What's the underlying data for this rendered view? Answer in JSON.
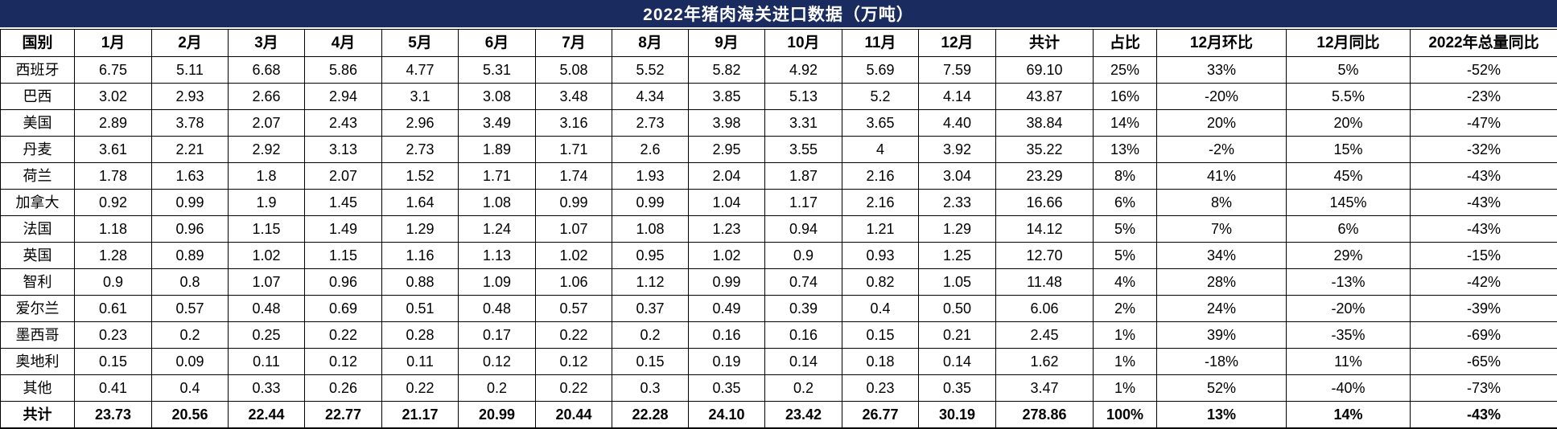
{
  "title": "2022年猪肉海关进口数据（万吨）",
  "styles": {
    "title_bg": "#1a2b5f",
    "title_color": "#ffffff",
    "border_color": "#000000",
    "text_color": "#000000"
  },
  "chart_data": {
    "type": "table",
    "title": "2022年猪肉海关进口数据（万吨）",
    "columns": [
      "国别",
      "1月",
      "2月",
      "3月",
      "4月",
      "5月",
      "6月",
      "7月",
      "8月",
      "9月",
      "10月",
      "11月",
      "12月",
      "共计",
      "占比",
      "12月环比",
      "12月同比",
      "2022年总量同比"
    ],
    "rows": [
      {
        "label": "西班牙",
        "cells": [
          "6.75",
          "5.11",
          "6.68",
          "5.86",
          "4.77",
          "5.31",
          "5.08",
          "5.52",
          "5.82",
          "4.92",
          "5.69",
          "7.59",
          "69.10",
          "25%",
          "33%",
          "5%",
          "-52%"
        ]
      },
      {
        "label": "巴西",
        "cells": [
          "3.02",
          "2.93",
          "2.66",
          "2.94",
          "3.1",
          "3.08",
          "3.48",
          "4.34",
          "3.85",
          "5.13",
          "5.2",
          "4.14",
          "43.87",
          "16%",
          "-20%",
          "5.5%",
          "-23%"
        ]
      },
      {
        "label": "美国",
        "cells": [
          "2.89",
          "3.78",
          "2.07",
          "2.43",
          "2.96",
          "3.49",
          "3.16",
          "2.73",
          "3.98",
          "3.31",
          "3.65",
          "4.40",
          "38.84",
          "14%",
          "20%",
          "20%",
          "-47%"
        ]
      },
      {
        "label": "丹麦",
        "cells": [
          "3.61",
          "2.21",
          "2.92",
          "3.13",
          "2.73",
          "1.89",
          "1.71",
          "2.6",
          "2.95",
          "3.55",
          "4",
          "3.92",
          "35.22",
          "13%",
          "-2%",
          "15%",
          "-32%"
        ]
      },
      {
        "label": "荷兰",
        "cells": [
          "1.78",
          "1.63",
          "1.8",
          "2.07",
          "1.52",
          "1.71",
          "1.74",
          "1.93",
          "2.04",
          "1.87",
          "2.16",
          "3.04",
          "23.29",
          "8%",
          "41%",
          "45%",
          "-43%"
        ]
      },
      {
        "label": "加拿大",
        "cells": [
          "0.92",
          "0.99",
          "1.9",
          "1.45",
          "1.64",
          "1.08",
          "0.99",
          "0.99",
          "1.04",
          "1.17",
          "2.16",
          "2.33",
          "16.66",
          "6%",
          "8%",
          "145%",
          "-43%"
        ]
      },
      {
        "label": "法国",
        "cells": [
          "1.18",
          "0.96",
          "1.15",
          "1.49",
          "1.29",
          "1.24",
          "1.07",
          "1.08",
          "1.23",
          "0.94",
          "1.21",
          "1.29",
          "14.12",
          "5%",
          "7%",
          "6%",
          "-43%"
        ]
      },
      {
        "label": "英国",
        "cells": [
          "1.28",
          "0.89",
          "1.02",
          "1.15",
          "1.16",
          "1.13",
          "1.02",
          "0.95",
          "1.02",
          "0.9",
          "0.93",
          "1.25",
          "12.70",
          "5%",
          "34%",
          "29%",
          "-15%"
        ]
      },
      {
        "label": "智利",
        "cells": [
          "0.9",
          "0.8",
          "1.07",
          "0.96",
          "0.88",
          "1.09",
          "1.06",
          "1.12",
          "0.99",
          "0.74",
          "0.82",
          "1.05",
          "11.48",
          "4%",
          "28%",
          "-13%",
          "-42%"
        ]
      },
      {
        "label": "爱尔兰",
        "cells": [
          "0.61",
          "0.57",
          "0.48",
          "0.69",
          "0.51",
          "0.48",
          "0.57",
          "0.37",
          "0.49",
          "0.39",
          "0.4",
          "0.50",
          "6.06",
          "2%",
          "24%",
          "-20%",
          "-39%"
        ]
      },
      {
        "label": "墨西哥",
        "cells": [
          "0.23",
          "0.2",
          "0.25",
          "0.22",
          "0.28",
          "0.17",
          "0.22",
          "0.2",
          "0.16",
          "0.16",
          "0.15",
          "0.21",
          "2.45",
          "1%",
          "39%",
          "-35%",
          "-69%"
        ]
      },
      {
        "label": "奥地利",
        "cells": [
          "0.15",
          "0.09",
          "0.11",
          "0.12",
          "0.11",
          "0.12",
          "0.12",
          "0.15",
          "0.19",
          "0.14",
          "0.18",
          "0.14",
          "1.62",
          "1%",
          "-18%",
          "11%",
          "-65%"
        ]
      },
      {
        "label": "其他",
        "cells": [
          "0.41",
          "0.4",
          "0.33",
          "0.26",
          "0.22",
          "0.2",
          "0.22",
          "0.3",
          "0.35",
          "0.2",
          "0.23",
          "0.35",
          "3.47",
          "1%",
          "52%",
          "-40%",
          "-73%"
        ]
      },
      {
        "label": "共计",
        "is_total": true,
        "cells": [
          "23.73",
          "20.56",
          "22.44",
          "22.77",
          "21.17",
          "20.99",
          "20.44",
          "22.28",
          "24.10",
          "23.42",
          "26.77",
          "30.19",
          "278.86",
          "100%",
          "13%",
          "14%",
          "-43%"
        ]
      }
    ]
  }
}
